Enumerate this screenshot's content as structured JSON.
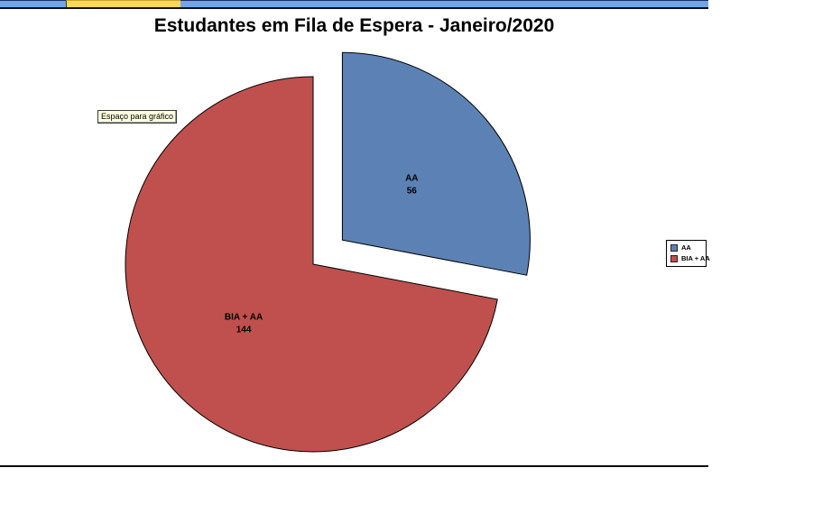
{
  "window": {
    "top_strip": {
      "segments": [
        {
          "name": "left-blue",
          "color": "#74a4e6"
        },
        {
          "name": "yellow-tab",
          "color": "#ffd75e"
        },
        {
          "name": "right-blue",
          "color": "#74a4e6"
        }
      ]
    }
  },
  "tooltip": {
    "text": "Espaço para gráfico"
  },
  "chart_data": {
    "type": "pie",
    "title": "Estudantes em Fila de Espera - Janeiro/2020",
    "categories": [
      "AA",
      "BIA + AA"
    ],
    "values": [
      56,
      144
    ],
    "colors": [
      "#5c82b5",
      "#c0504d"
    ],
    "data_labels": [
      {
        "name": "AA",
        "value": "56"
      },
      {
        "name": "BIA + AA",
        "value": "144"
      }
    ],
    "total": 200,
    "start_angle_deg": 0,
    "direction": "clockwise",
    "exploded_slice": "AA",
    "legend_position": "right"
  },
  "legend": {
    "items": [
      {
        "label": "AA",
        "color": "#5c82b5"
      },
      {
        "label": "BIA + AA",
        "color": "#c0504d"
      }
    ]
  }
}
